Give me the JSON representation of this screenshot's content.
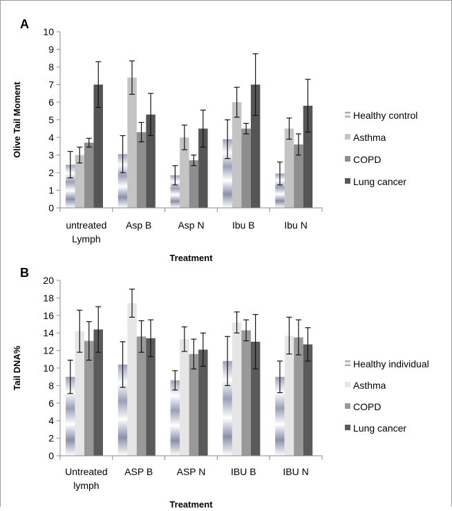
{
  "chart_data": [
    {
      "panel": "A",
      "type": "bar",
      "title": "",
      "xlabel": "Treatment",
      "ylabel": "Olive Tail Moment",
      "ylim": [
        0,
        10
      ],
      "yticks": [
        0,
        1,
        2,
        3,
        4,
        5,
        6,
        7,
        8,
        9,
        10
      ],
      "categories": [
        [
          "untreated",
          "Lymph"
        ],
        [
          "Asp B"
        ],
        [
          "Asp N"
        ],
        [
          "Ibu B"
        ],
        [
          "Ibu N"
        ]
      ],
      "series": [
        {
          "name": "Healthy control",
          "values": [
            2.45,
            3.05,
            1.85,
            3.9,
            1.95
          ],
          "errors": [
            0.75,
            1.05,
            0.55,
            1.1,
            0.65
          ],
          "color": "gradient"
        },
        {
          "name": "Asthma",
          "values": [
            3.0,
            7.4,
            4.0,
            6.0,
            4.5
          ],
          "errors": [
            0.45,
            0.95,
            0.7,
            0.85,
            0.6
          ],
          "color": "#c4c4c4"
        },
        {
          "name": "COPD",
          "values": [
            3.7,
            4.3,
            2.7,
            4.5,
            3.6
          ],
          "errors": [
            0.25,
            0.55,
            0.3,
            0.3,
            0.6
          ],
          "color": "#8e8e8e"
        },
        {
          "name": "Lung cancer",
          "values": [
            7.0,
            5.3,
            4.5,
            7.0,
            5.8
          ],
          "errors": [
            1.3,
            1.2,
            1.05,
            1.75,
            1.5
          ],
          "color": "#555555"
        }
      ],
      "legend_position": "right"
    },
    {
      "panel": "B",
      "type": "bar",
      "title": "",
      "xlabel": "Treatment",
      "ylabel": "Tail DNA%",
      "ylim": [
        0,
        20
      ],
      "yticks": [
        0,
        2,
        4,
        6,
        8,
        10,
        12,
        14,
        16,
        18,
        20
      ],
      "categories": [
        [
          "Untreated",
          "lymph"
        ],
        [
          "ASP B"
        ],
        [
          "ASP N"
        ],
        [
          "IBU B"
        ],
        [
          "IBU N"
        ]
      ],
      "series": [
        {
          "name": "Healthy individual",
          "values": [
            9.0,
            10.4,
            8.6,
            10.8,
            9.0
          ],
          "errors": [
            1.9,
            2.6,
            1.1,
            2.8,
            1.8
          ],
          "color": "gradient"
        },
        {
          "name": "Asthma",
          "values": [
            14.2,
            17.4,
            13.3,
            15.2,
            13.7
          ],
          "errors": [
            2.4,
            1.6,
            1.4,
            1.2,
            2.1
          ],
          "color": "#e6e6e6"
        },
        {
          "name": "COPD",
          "values": [
            13.1,
            13.6,
            11.6,
            14.3,
            13.5
          ],
          "errors": [
            2.2,
            1.8,
            1.7,
            1.2,
            2.0
          ],
          "color": "#999999"
        },
        {
          "name": "Lung cancer",
          "values": [
            14.4,
            13.4,
            12.1,
            13.0,
            12.7
          ],
          "errors": [
            2.6,
            2.1,
            1.9,
            3.1,
            1.9
          ],
          "color": "#5a5a5a"
        }
      ],
      "legend_position": "right"
    }
  ]
}
